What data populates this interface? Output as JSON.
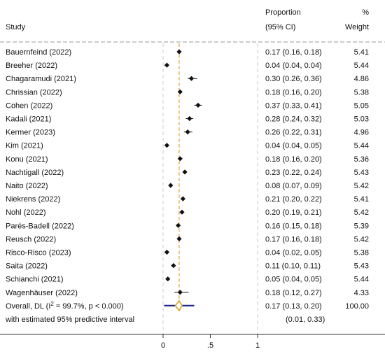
{
  "chart_data": {
    "type": "forest",
    "headers": {
      "study": "Study",
      "proportion": "Proportion",
      "ci": "(95% CI)",
      "pct": "%",
      "weight": "Weight"
    },
    "xlim": [
      0,
      1
    ],
    "x_ticks": [
      "0",
      ".5",
      "1"
    ],
    "x_tick_values": [
      0,
      0.5,
      1
    ],
    "reference_line_x": 0,
    "overall_line_x": 0.17,
    "studies": [
      {
        "label": "Bauernfeind (2022)",
        "est": 0.17,
        "lo": 0.16,
        "hi": 0.18,
        "ci_text": "0.17 (0.16, 0.18)",
        "weight": "5.41"
      },
      {
        "label": "Breeher (2022)",
        "est": 0.04,
        "lo": 0.04,
        "hi": 0.04,
        "ci_text": "0.04 (0.04, 0.04)",
        "weight": "5.44"
      },
      {
        "label": "Chagaramudi (2021)",
        "est": 0.3,
        "lo": 0.26,
        "hi": 0.36,
        "ci_text": "0.30 (0.26, 0.36)",
        "weight": "4.86"
      },
      {
        "label": "Chrissian (2022)",
        "est": 0.18,
        "lo": 0.16,
        "hi": 0.2,
        "ci_text": "0.18 (0.16, 0.20)",
        "weight": "5.38"
      },
      {
        "label": "Cohen (2022)",
        "est": 0.37,
        "lo": 0.33,
        "hi": 0.41,
        "ci_text": "0.37 (0.33, 0.41)",
        "weight": "5.05"
      },
      {
        "label": "Kadali (2021)",
        "est": 0.28,
        "lo": 0.24,
        "hi": 0.32,
        "ci_text": "0.28 (0.24, 0.32)",
        "weight": "5.03"
      },
      {
        "label": "Kermer (2023)",
        "est": 0.26,
        "lo": 0.22,
        "hi": 0.31,
        "ci_text": "0.26 (0.22, 0.31)",
        "weight": "4.96"
      },
      {
        "label": "Kim (2021)",
        "est": 0.04,
        "lo": 0.04,
        "hi": 0.05,
        "ci_text": "0.04 (0.04, 0.05)",
        "weight": "5.44"
      },
      {
        "label": "Konu (2021)",
        "est": 0.18,
        "lo": 0.16,
        "hi": 0.2,
        "ci_text": "0.18 (0.16, 0.20)",
        "weight": "5.36"
      },
      {
        "label": "Nachtigall (2022)",
        "est": 0.23,
        "lo": 0.22,
        "hi": 0.24,
        "ci_text": "0.23 (0.22, 0.24)",
        "weight": "5.43"
      },
      {
        "label": "Naito (2022)",
        "est": 0.08,
        "lo": 0.07,
        "hi": 0.09,
        "ci_text": "0.08 (0.07, 0.09)",
        "weight": "5.42"
      },
      {
        "label": "Niekrens (2022)",
        "est": 0.21,
        "lo": 0.2,
        "hi": 0.22,
        "ci_text": "0.21 (0.20, 0.22)",
        "weight": "5.41"
      },
      {
        "label": "Nohl (2022)",
        "est": 0.2,
        "lo": 0.19,
        "hi": 0.21,
        "ci_text": "0.20 (0.19, 0.21)",
        "weight": "5.42"
      },
      {
        "label": "Parés-Badell (2022)",
        "est": 0.16,
        "lo": 0.15,
        "hi": 0.18,
        "ci_text": "0.16 (0.15, 0.18)",
        "weight": "5.39"
      },
      {
        "label": "Reusch (2022)",
        "est": 0.17,
        "lo": 0.16,
        "hi": 0.18,
        "ci_text": "0.17 (0.16, 0.18)",
        "weight": "5.42"
      },
      {
        "label": "Risco-Risco (2023)",
        "est": 0.04,
        "lo": 0.02,
        "hi": 0.05,
        "ci_text": "0.04 (0.02, 0.05)",
        "weight": "5.38"
      },
      {
        "label": "Saita (2022)",
        "est": 0.11,
        "lo": 0.1,
        "hi": 0.11,
        "ci_text": "0.11 (0.10, 0.11)",
        "weight": "5.43"
      },
      {
        "label": "Schianchi (2021)",
        "est": 0.05,
        "lo": 0.04,
        "hi": 0.05,
        "ci_text": "0.05 (0.04, 0.05)",
        "weight": "5.44"
      },
      {
        "label": "Wagenhäuser (2022)",
        "est": 0.18,
        "lo": 0.12,
        "hi": 0.27,
        "ci_text": "0.18 (0.12, 0.27)",
        "weight": "4.33"
      }
    ],
    "overall": {
      "label_prefix": "Overall, DL (I",
      "label_sup": "2",
      "label_suffix": " = 99.7%, p < 0.000)",
      "est": 0.17,
      "lo": 0.13,
      "hi": 0.2,
      "ci_text": "0.17 (0.13, 0.20)",
      "weight": "100.00"
    },
    "predictive": {
      "label": "with estimated 95% predictive interval",
      "lo": 0.01,
      "hi": 0.33,
      "ci_text": "(0.01, 0.33)"
    },
    "colors": {
      "point": "#111111",
      "overall_line": "#e8a33a",
      "diamond": "#d9a520",
      "predictive_bar": "#1f2a8a",
      "reference_line": "#c8c8d8"
    }
  }
}
